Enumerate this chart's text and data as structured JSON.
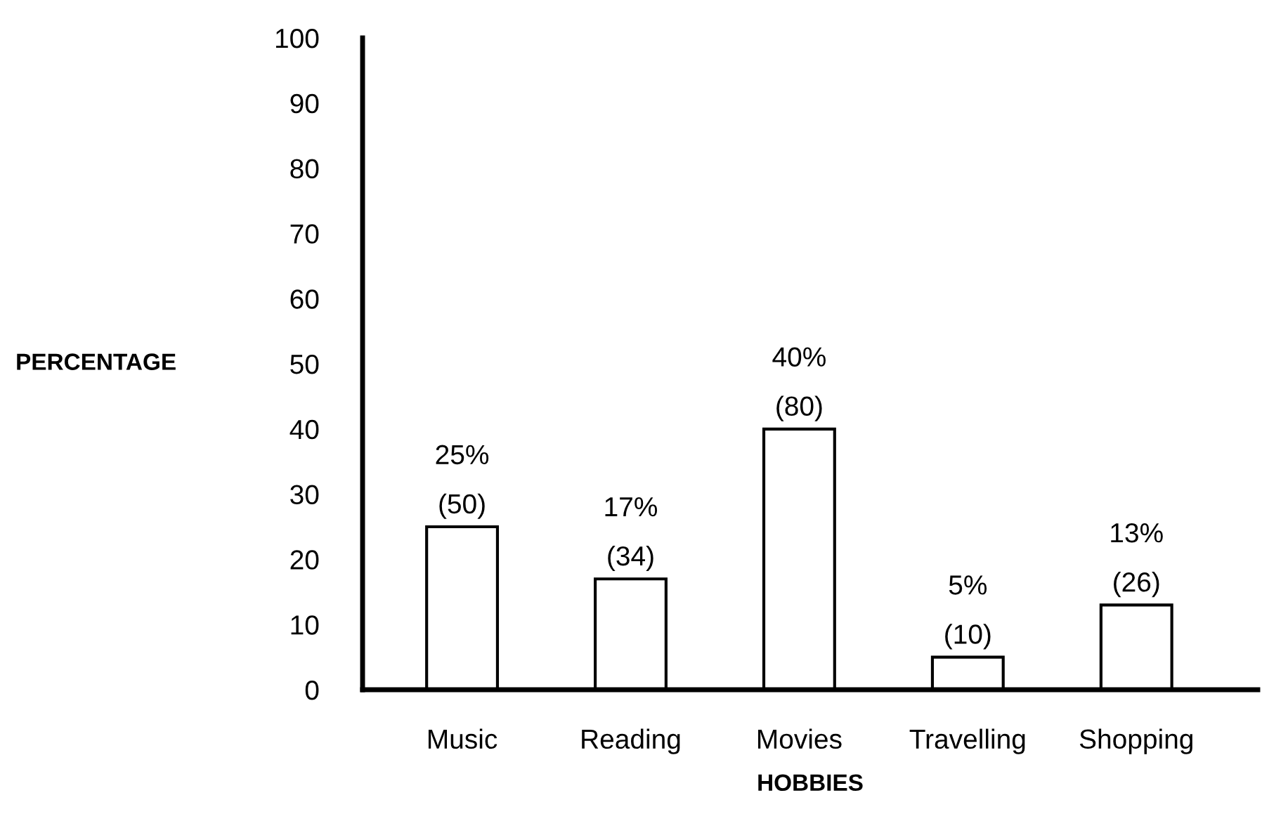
{
  "chart_data": {
    "type": "bar",
    "xlabel": "HOBBIES",
    "ylabel": "PERCENTAGE",
    "categories": [
      "Music",
      "Reading",
      "Movies",
      "Travelling",
      "Shopping"
    ],
    "values": [
      25,
      17,
      40,
      5,
      13
    ],
    "value_labels": [
      "25%\n(50)",
      "17%\n(34)",
      "40%\n(80)",
      "5%\n(10)",
      "13%\n(26)"
    ],
    "color": "#ffffff",
    "ylim": [
      0,
      100
    ],
    "yticks": [
      0,
      10,
      20,
      30,
      40,
      50,
      60,
      70,
      80,
      90,
      100
    ],
    "grid": false
  }
}
